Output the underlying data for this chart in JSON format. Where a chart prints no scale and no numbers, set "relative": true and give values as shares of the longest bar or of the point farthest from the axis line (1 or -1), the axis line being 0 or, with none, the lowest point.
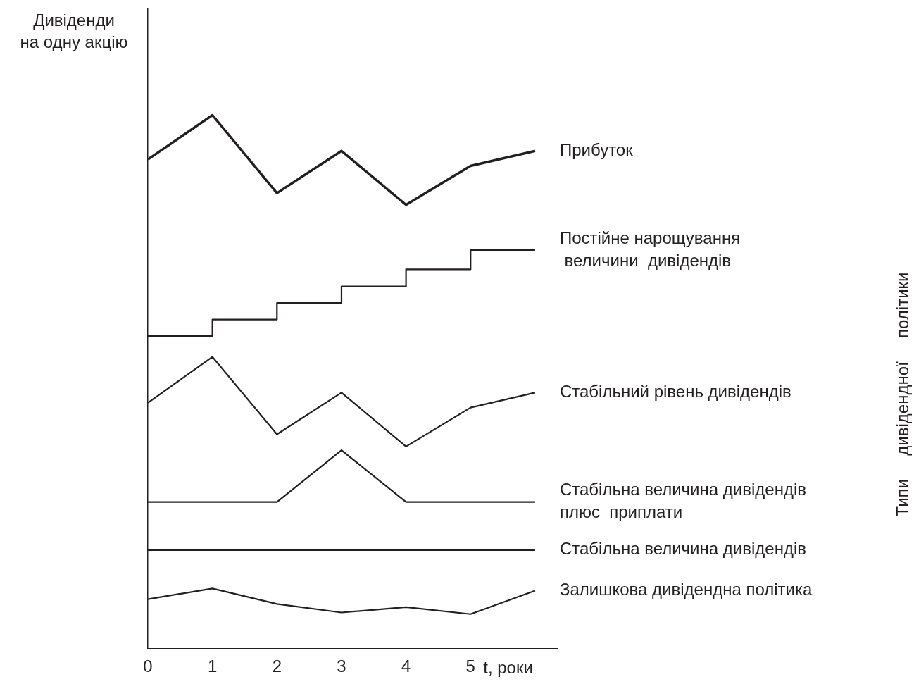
{
  "chart_data": {
    "type": "line",
    "relative": true,
    "ylabel": "Дивіденди\nна одну акцію",
    "xlabel": "t, роки",
    "xlim": [
      0,
      6.35
    ],
    "xticks": [
      0,
      1,
      2,
      3,
      4,
      5
    ],
    "grid": false,
    "legend": false,
    "marker": "none",
    "line_style": "solid",
    "annotations": [
      "Типи     дивідендної     політики"
    ],
    "x": [
      0,
      1,
      2,
      3,
      4,
      5,
      6
    ],
    "series": [
      {
        "name": "Прибуток",
        "color": "#231f20",
        "values": [
          0.917,
          1,
          0.854,
          0.933,
          0.832,
          0.905,
          0.933
        ]
      },
      {
        "name": "Постійне нарощування\n величини  дивідендів",
        "type": "step",
        "color": "#231f20",
        "values": [
          0.586,
          0.617,
          0.648,
          0.679,
          0.711,
          0.747,
          0.747
        ]
      },
      {
        "name": "Стабільний рівень дивідендів",
        "color": "#231f20",
        "values": [
          0.461,
          0.547,
          0.402,
          0.48,
          0.379,
          0.452,
          0.48
        ]
      },
      {
        "name": "Стабільна величина дивідендів\nплюс  приплати",
        "color": "#231f20",
        "x": [
          0,
          2,
          3,
          4,
          6
        ],
        "values": [
          0.275,
          0.275,
          0.372,
          0.275,
          0.275
        ]
      },
      {
        "name": "Стабільна величина дивідендів",
        "color": "#231f20",
        "x": [
          0,
          6
        ],
        "values": [
          0.185,
          0.185
        ]
      },
      {
        "name": "Залишкова дивідендна політика",
        "color": "#231f20",
        "values": [
          0.093,
          0.113,
          0.084,
          0.068,
          0.078,
          0.065,
          0.109
        ]
      }
    ]
  }
}
